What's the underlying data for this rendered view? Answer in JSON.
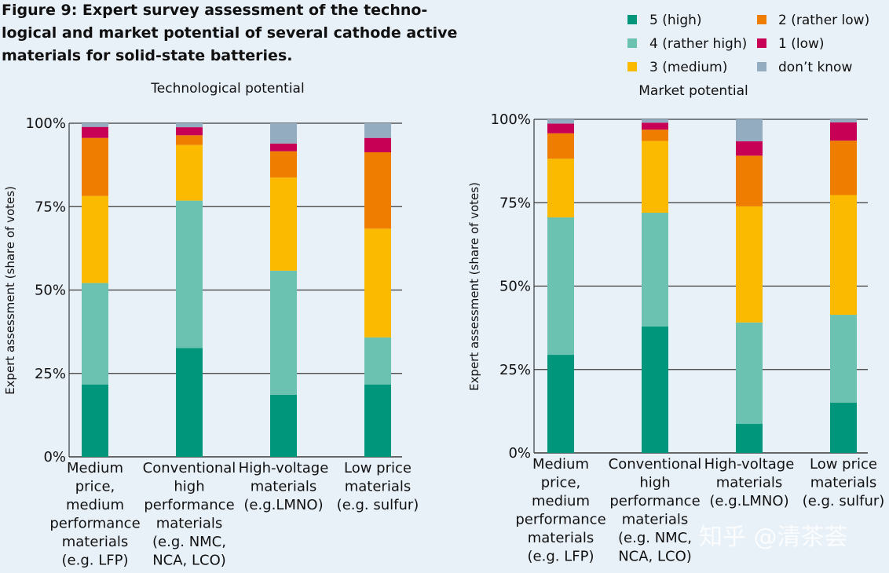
{
  "figure": {
    "title_lines": [
      "Figure 9: Expert survey assessment of the techno-",
      "logical and market potential of several cathode active",
      "materials for solid-state batteries."
    ],
    "watermark": "知乎 @清茶荟"
  },
  "colors": {
    "5 (high)": "#00967c",
    "4 (rather high)": "#6cc2b1",
    "3 (medium)": "#fbb900",
    "2 (rather low)": "#ef7d00",
    "1 (low)": "#c80055",
    "don’t know": "#94acc0"
  },
  "chart_data": [
    {
      "type": "bar",
      "stacked": true,
      "title": "Technological potential",
      "ylabel": "Expert assessment (share of votes)",
      "ylim": [
        0,
        100
      ],
      "yticks": [
        "0%",
        "25%",
        "50%",
        "75%",
        "100%"
      ],
      "categories": [
        [
          "Medium",
          "price,",
          "medium",
          "performance",
          "materials",
          "(e.g. LFP)"
        ],
        [
          "Conventional",
          "high",
          "performance",
          "materials",
          "(e.g. NMC,",
          "NCA, LCO)"
        ],
        [
          "High-voltage",
          "materials",
          "(e.g.LMNO)"
        ],
        [
          "Low price",
          "materials",
          "(e.g. sulfur)"
        ]
      ],
      "series": [
        {
          "name": "5 (high)",
          "values": [
            21.7,
            32.6,
            18.6,
            21.7
          ]
        },
        {
          "name": "4 (rather high)",
          "values": [
            30.4,
            44.2,
            37.2,
            14.1
          ]
        },
        {
          "name": "3 (medium)",
          "values": [
            26.1,
            16.7,
            27.9,
            32.6
          ]
        },
        {
          "name": "2 (rather low)",
          "values": [
            17.4,
            2.9,
            7.9,
            22.9
          ]
        },
        {
          "name": "1 (low)",
          "values": [
            3.3,
            2.4,
            2.3,
            4.3
          ]
        },
        {
          "name": "don’t know",
          "values": [
            1.1,
            1.2,
            6.1,
            4.4
          ]
        }
      ]
    },
    {
      "type": "bar",
      "stacked": true,
      "title": "Market potential",
      "ylabel": "Expert assessment (share of votes)",
      "ylim": [
        0,
        100
      ],
      "yticks": [
        "0%",
        "25%",
        "50%",
        "75%",
        "100%"
      ],
      "categories": [
        [
          "Medium",
          "price,",
          "medium",
          "performance",
          "materials",
          "(e.g. LFP)"
        ],
        [
          "Conventional",
          "high",
          "performance",
          "materials",
          "(e.g. NMC,",
          "NCA, LCO)"
        ],
        [
          "High-voltage",
          "materials",
          "(e.g.LMNO)"
        ],
        [
          "Low price",
          "materials",
          "(e.g. sulfur)"
        ]
      ],
      "series": [
        {
          "name": "5 (high)",
          "values": [
            29.4,
            37.9,
            8.7,
            15.1
          ]
        },
        {
          "name": "4 (rather high)",
          "values": [
            41.2,
            34.1,
            30.4,
            26.3
          ]
        },
        {
          "name": "3 (medium)",
          "values": [
            17.6,
            21.5,
            34.8,
            35.9
          ]
        },
        {
          "name": "2 (rather low)",
          "values": [
            7.6,
            3.4,
            15.2,
            16.3
          ]
        },
        {
          "name": "1 (low)",
          "values": [
            2.9,
            2.1,
            4.3,
            5.5
          ]
        },
        {
          "name": "don’t know",
          "values": [
            1.3,
            1.0,
            6.6,
            0.9
          ]
        }
      ]
    }
  ],
  "legend": [
    [
      "5 (high)",
      "2 (rather low)"
    ],
    [
      "4 (rather high)",
      "1 (low)"
    ],
    [
      "3 (medium)",
      "don’t know"
    ]
  ]
}
